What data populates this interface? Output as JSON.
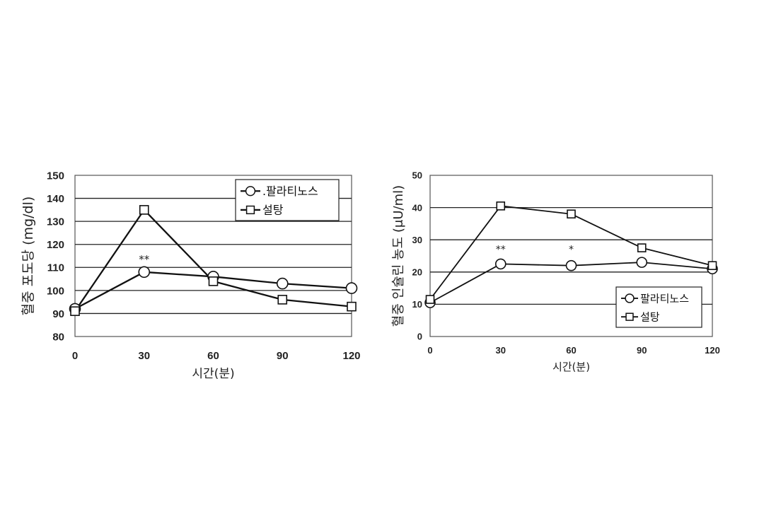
{
  "chart_data": [
    {
      "type": "line",
      "title": "",
      "xlabel": "시간(분)",
      "ylabel": "혈중 포도당 (mg/dl)",
      "x": [
        0,
        30,
        60,
        90,
        120
      ],
      "xticks": [
        "0",
        "30",
        "60",
        "90",
        "120"
      ],
      "ylim": [
        80,
        150
      ],
      "ystep": 10,
      "grid": true,
      "legend_position": "top-right",
      "series": [
        {
          "name": ".팔라티노스",
          "marker": "circle",
          "values": [
            92,
            108,
            106,
            103,
            101
          ]
        },
        {
          "name": "설탕",
          "marker": "square",
          "values": [
            91,
            135,
            104,
            96,
            93
          ]
        }
      ],
      "annotations": [
        {
          "text": "**",
          "x": 30,
          "y": 112
        }
      ]
    },
    {
      "type": "line",
      "title": "",
      "xlabel": "시간(분)",
      "ylabel": "혈중 인슐린 농도 (μU/ml)",
      "x": [
        0,
        30,
        60,
        90,
        120
      ],
      "xticks": [
        "0",
        "30",
        "60",
        "90",
        "120"
      ],
      "ylim": [
        0,
        50
      ],
      "ystep": 10,
      "grid": true,
      "legend_position": "bottom-right",
      "series": [
        {
          "name": "팔라티노스",
          "marker": "circle",
          "values": [
            10.5,
            22.5,
            22,
            23,
            21
          ]
        },
        {
          "name": "설탕",
          "marker": "square",
          "values": [
            11.5,
            40.5,
            38,
            27.5,
            22
          ]
        }
      ],
      "annotations": [
        {
          "text": "**",
          "x": 30,
          "y": 26
        },
        {
          "text": "*",
          "x": 60,
          "y": 26
        }
      ]
    }
  ]
}
